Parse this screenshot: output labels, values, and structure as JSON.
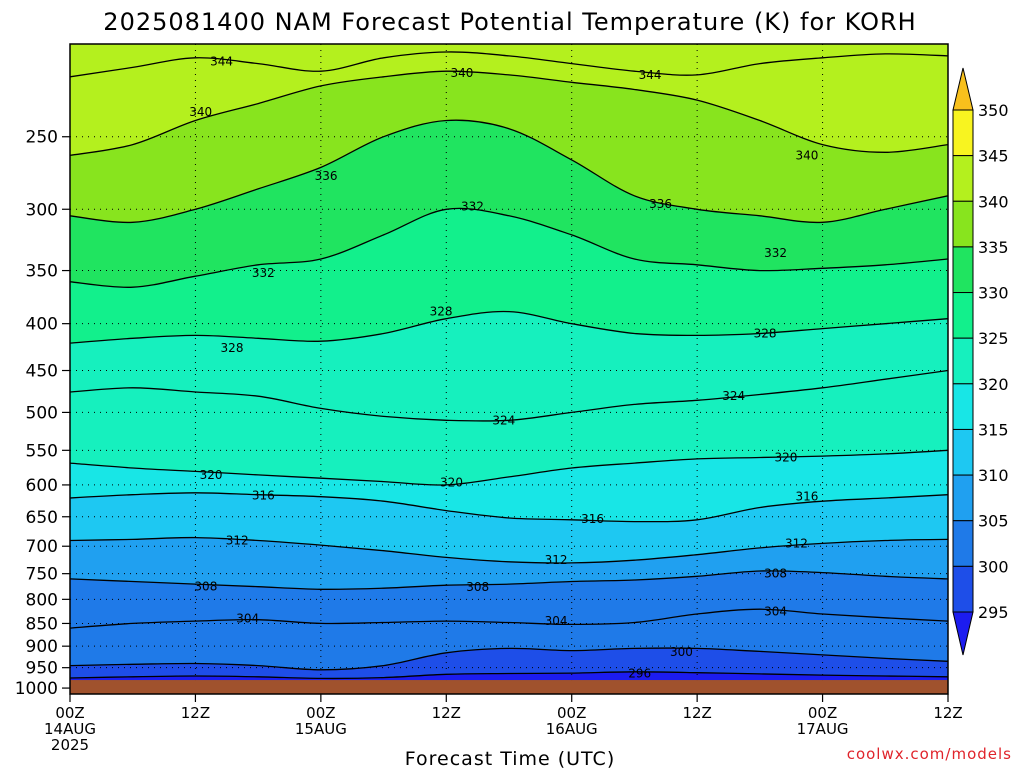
{
  "chart_data": {
    "type": "heatmap",
    "title": "2025081400 NAM Forecast Potential Temperature (K) for KORH",
    "xlabel": "Forecast Time (UTC)",
    "ylabel": "",
    "credit": "coolwx.com/models",
    "variable": "Potential Temperature (K)",
    "y_axis": {
      "scale": "log-pressure",
      "units": "hPa",
      "range": [
        1015,
        198
      ],
      "ticks": [
        250,
        300,
        350,
        400,
        450,
        500,
        550,
        600,
        650,
        700,
        750,
        800,
        850,
        900,
        950,
        1000
      ],
      "ground_level_hPa": 980
    },
    "x_axis": {
      "range_hours": [
        0,
        84
      ],
      "ticks": [
        {
          "hour": 0,
          "lines": [
            "00Z",
            "14AUG",
            "2025"
          ]
        },
        {
          "hour": 12,
          "lines": [
            "12Z"
          ]
        },
        {
          "hour": 24,
          "lines": [
            "00Z",
            "15AUG"
          ]
        },
        {
          "hour": 36,
          "lines": [
            "12Z"
          ]
        },
        {
          "hour": 48,
          "lines": [
            "00Z",
            "16AUG"
          ]
        },
        {
          "hour": 60,
          "lines": [
            "12Z"
          ]
        },
        {
          "hour": 72,
          "lines": [
            "00Z",
            "17AUG"
          ]
        },
        {
          "hour": 84,
          "lines": [
            "12Z"
          ]
        }
      ]
    },
    "grid": true,
    "colorbar": {
      "position": "right",
      "levels": [
        295,
        300,
        305,
        310,
        315,
        320,
        325,
        330,
        335,
        340,
        345,
        350
      ],
      "colors": [
        "#1c1cf0",
        "#1e4ee8",
        "#1f7ae8",
        "#20a0f0",
        "#1ec8f2",
        "#18e6e6",
        "#16f0be",
        "#12f08c",
        "#20e460",
        "#88e41e",
        "#b4f01e",
        "#f8f420",
        "#f8c01c"
      ]
    },
    "contours": [
      {
        "theta": 296,
        "points": [
          [
            0,
            975
          ],
          [
            6,
            972
          ],
          [
            12,
            970
          ],
          [
            18,
            972
          ],
          [
            24,
            976
          ],
          [
            30,
            974
          ],
          [
            36,
            966
          ],
          [
            42,
            964
          ],
          [
            48,
            963
          ],
          [
            54,
            960
          ],
          [
            60,
            962
          ],
          [
            66,
            965
          ],
          [
            72,
            968
          ],
          [
            78,
            970
          ],
          [
            84,
            972
          ]
        ],
        "labels": [
          [
            54.5,
            964
          ]
        ]
      },
      {
        "theta": 300,
        "points": [
          [
            0,
            945
          ],
          [
            6,
            942
          ],
          [
            12,
            940
          ],
          [
            18,
            945
          ],
          [
            24,
            955
          ],
          [
            30,
            945
          ],
          [
            36,
            915
          ],
          [
            42,
            905
          ],
          [
            48,
            910
          ],
          [
            54,
            905
          ],
          [
            60,
            905
          ],
          [
            66,
            912
          ],
          [
            72,
            920
          ],
          [
            78,
            928
          ],
          [
            84,
            935
          ]
        ],
        "labels": [
          [
            58.5,
            913
          ]
        ]
      },
      {
        "theta": 304,
        "points": [
          [
            0,
            860
          ],
          [
            6,
            850
          ],
          [
            12,
            845
          ],
          [
            18,
            842
          ],
          [
            24,
            850
          ],
          [
            30,
            848
          ],
          [
            36,
            845
          ],
          [
            42,
            848
          ],
          [
            48,
            852
          ],
          [
            54,
            848
          ],
          [
            60,
            830
          ],
          [
            66,
            820
          ],
          [
            72,
            830
          ],
          [
            78,
            838
          ],
          [
            84,
            845
          ]
        ],
        "labels": [
          [
            17,
            840
          ],
          [
            46.5,
            845
          ],
          [
            67.5,
            825
          ]
        ]
      },
      {
        "theta": 308,
        "points": [
          [
            0,
            760
          ],
          [
            6,
            765
          ],
          [
            12,
            770
          ],
          [
            18,
            775
          ],
          [
            24,
            780
          ],
          [
            30,
            778
          ],
          [
            36,
            772
          ],
          [
            42,
            770
          ],
          [
            48,
            765
          ],
          [
            54,
            762
          ],
          [
            60,
            755
          ],
          [
            66,
            745
          ],
          [
            72,
            748
          ],
          [
            78,
            755
          ],
          [
            84,
            760
          ]
        ],
        "labels": [
          [
            13,
            775
          ],
          [
            39,
            776
          ],
          [
            67.5,
            750
          ]
        ]
      },
      {
        "theta": 312,
        "points": [
          [
            0,
            690
          ],
          [
            6,
            688
          ],
          [
            12,
            685
          ],
          [
            18,
            690
          ],
          [
            24,
            698
          ],
          [
            30,
            708
          ],
          [
            36,
            720
          ],
          [
            42,
            728
          ],
          [
            48,
            730
          ],
          [
            54,
            725
          ],
          [
            60,
            715
          ],
          [
            66,
            703
          ],
          [
            72,
            695
          ],
          [
            78,
            690
          ],
          [
            84,
            688
          ]
        ],
        "labels": [
          [
            16,
            690
          ],
          [
            46.5,
            725
          ],
          [
            69.5,
            695
          ]
        ]
      },
      {
        "theta": 316,
        "points": [
          [
            0,
            620
          ],
          [
            6,
            615
          ],
          [
            12,
            612
          ],
          [
            18,
            615
          ],
          [
            24,
            618
          ],
          [
            30,
            625
          ],
          [
            36,
            640
          ],
          [
            42,
            652
          ],
          [
            48,
            655
          ],
          [
            54,
            658
          ],
          [
            60,
            655
          ],
          [
            66,
            635
          ],
          [
            72,
            625
          ],
          [
            78,
            620
          ],
          [
            84,
            615
          ]
        ],
        "labels": [
          [
            18.5,
            616
          ],
          [
            50,
            654
          ],
          [
            70.5,
            618
          ]
        ]
      },
      {
        "theta": 320,
        "points": [
          [
            0,
            568
          ],
          [
            6,
            575
          ],
          [
            12,
            580
          ],
          [
            18,
            585
          ],
          [
            24,
            590
          ],
          [
            30,
            595
          ],
          [
            36,
            600
          ],
          [
            42,
            588
          ],
          [
            48,
            575
          ],
          [
            54,
            568
          ],
          [
            60,
            562
          ],
          [
            66,
            560
          ],
          [
            72,
            558
          ],
          [
            78,
            555
          ],
          [
            84,
            550
          ]
        ],
        "labels": [
          [
            13.5,
            585
          ],
          [
            36.5,
            596
          ],
          [
            68.5,
            560
          ]
        ]
      },
      {
        "theta": 324,
        "points": [
          [
            0,
            475
          ],
          [
            6,
            470
          ],
          [
            12,
            475
          ],
          [
            18,
            480
          ],
          [
            24,
            495
          ],
          [
            30,
            505
          ],
          [
            36,
            510
          ],
          [
            42,
            510
          ],
          [
            48,
            500
          ],
          [
            54,
            490
          ],
          [
            60,
            485
          ],
          [
            66,
            478
          ],
          [
            72,
            470
          ],
          [
            78,
            460
          ],
          [
            84,
            450
          ]
        ],
        "labels": [
          [
            41.5,
            510
          ],
          [
            63.5,
            480
          ]
        ]
      },
      {
        "theta": 328,
        "points": [
          [
            0,
            420
          ],
          [
            6,
            415
          ],
          [
            12,
            412
          ],
          [
            18,
            415
          ],
          [
            24,
            418
          ],
          [
            30,
            410
          ],
          [
            36,
            395
          ],
          [
            42,
            388
          ],
          [
            48,
            400
          ],
          [
            54,
            410
          ],
          [
            60,
            412
          ],
          [
            66,
            410
          ],
          [
            72,
            405
          ],
          [
            78,
            400
          ],
          [
            84,
            395
          ]
        ],
        "labels": [
          [
            15.5,
            425
          ],
          [
            35.5,
            388
          ],
          [
            66.5,
            410
          ]
        ]
      },
      {
        "theta": 332,
        "points": [
          [
            0,
            360
          ],
          [
            6,
            365
          ],
          [
            12,
            355
          ],
          [
            18,
            345
          ],
          [
            24,
            340
          ],
          [
            30,
            320
          ],
          [
            36,
            300
          ],
          [
            42,
            305
          ],
          [
            48,
            320
          ],
          [
            54,
            340
          ],
          [
            60,
            345
          ],
          [
            66,
            350
          ],
          [
            72,
            348
          ],
          [
            78,
            345
          ],
          [
            84,
            340
          ]
        ],
        "labels": [
          [
            18.5,
            352
          ],
          [
            38.5,
            298
          ],
          [
            67.5,
            335
          ]
        ]
      },
      {
        "theta": 336,
        "points": [
          [
            0,
            305
          ],
          [
            6,
            310
          ],
          [
            12,
            300
          ],
          [
            18,
            285
          ],
          [
            24,
            270
          ],
          [
            30,
            250
          ],
          [
            36,
            240
          ],
          [
            42,
            245
          ],
          [
            48,
            265
          ],
          [
            54,
            290
          ],
          [
            60,
            300
          ],
          [
            66,
            305
          ],
          [
            72,
            310
          ],
          [
            78,
            300
          ],
          [
            84,
            290
          ]
        ],
        "labels": [
          [
            24.5,
            276
          ],
          [
            56.5,
            296
          ]
        ]
      },
      {
        "theta": 340,
        "points": [
          [
            0,
            262
          ],
          [
            6,
            255
          ],
          [
            12,
            240
          ],
          [
            18,
            230
          ],
          [
            24,
            220
          ],
          [
            30,
            215
          ],
          [
            36,
            212
          ],
          [
            42,
            214
          ],
          [
            48,
            218
          ],
          [
            54,
            222
          ],
          [
            60,
            228
          ],
          [
            66,
            240
          ],
          [
            72,
            255
          ],
          [
            78,
            260
          ],
          [
            84,
            255
          ]
        ],
        "labels": [
          [
            12.5,
            235
          ],
          [
            37.5,
            213
          ],
          [
            70.5,
            262
          ]
        ]
      },
      {
        "theta": 344,
        "points": [
          [
            0,
            215
          ],
          [
            6,
            210
          ],
          [
            12,
            205
          ],
          [
            18,
            208
          ],
          [
            24,
            212
          ],
          [
            30,
            205
          ],
          [
            36,
            202
          ],
          [
            42,
            204
          ],
          [
            48,
            208
          ],
          [
            54,
            212
          ],
          [
            60,
            214
          ],
          [
            66,
            208
          ],
          [
            72,
            205
          ],
          [
            78,
            203
          ],
          [
            84,
            204
          ]
        ],
        "labels": [
          [
            14.5,
            207
          ],
          [
            55.5,
            214
          ]
        ]
      }
    ]
  }
}
